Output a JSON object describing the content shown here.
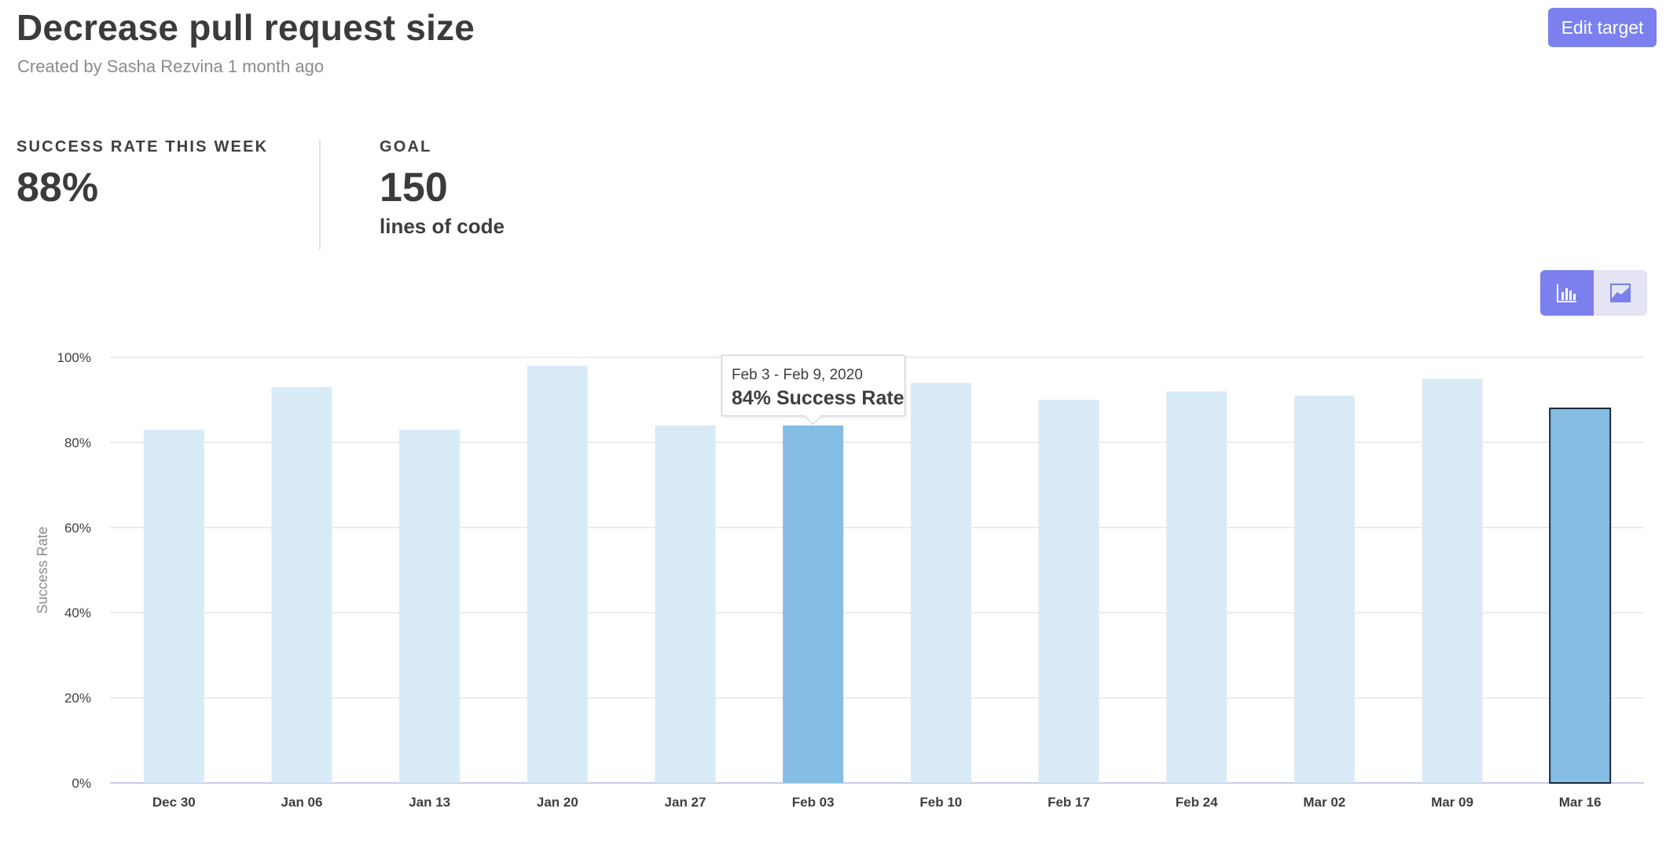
{
  "header": {
    "title": "Decrease pull request size",
    "subtitle": "Created by Sasha Rezvina 1 month ago",
    "edit_button": "Edit target"
  },
  "stats": {
    "success_label": "SUCCESS RATE THIS WEEK",
    "success_value": "88%",
    "goal_label": "GOAL",
    "goal_value": "150",
    "goal_unit": "lines of code"
  },
  "view_toggle": {
    "options": [
      "bar-chart-icon",
      "area-chart-icon"
    ],
    "selected": "bar-chart-icon"
  },
  "tooltip": {
    "date_range": "Feb 3 - Feb 9, 2020",
    "value_text": "84% Success Rate"
  },
  "colors": {
    "accent": "#7b80ee",
    "bar": "#d9eaf7",
    "bar_highlight": "#85bde4",
    "text": "#3e3e3e"
  },
  "chart_data": {
    "type": "bar",
    "categories": [
      "Dec 30",
      "Jan 06",
      "Jan 13",
      "Jan 20",
      "Jan 27",
      "Feb 03",
      "Feb 10",
      "Feb 17",
      "Feb 24",
      "Mar 02",
      "Mar 09",
      "Mar 16"
    ],
    "series": [
      {
        "values": [
          83,
          93,
          83,
          98,
          84,
          84,
          94,
          90,
          92,
          91,
          95,
          88
        ]
      }
    ],
    "ylabel": "Success Rate",
    "ylim": [
      0,
      100
    ],
    "yticks": [
      "0%",
      "20%",
      "40%",
      "60%",
      "80%",
      "100%"
    ],
    "highlighted": [
      "Feb 03",
      "Mar 16"
    ],
    "current": "Mar 16",
    "grid": true
  }
}
